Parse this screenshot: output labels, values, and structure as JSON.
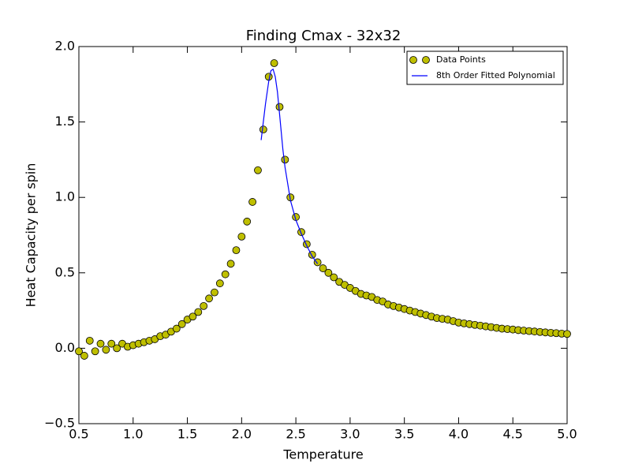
{
  "chart_data": {
    "type": "scatter",
    "title": "Finding Cmax - 32x32",
    "xlabel": "Temperature",
    "ylabel": "Heat Capacity per spin",
    "xlim": [
      0.5,
      5.0
    ],
    "xticks": [
      0.5,
      {
        "value": 1,
        "label": "1.0"
      },
      1.5,
      {
        "value": 2,
        "label": "2.0"
      },
      2.5,
      {
        "value": 3,
        "label": "3.0"
      },
      3.5,
      {
        "value": 4,
        "label": "4.0"
      },
      4.5,
      {
        "value": 5,
        "label": "5.0"
      }
    ],
    "ylim": [
      -0.5,
      2.0
    ],
    "yticks": [
      {
        "value": -0.5,
        "label": "−0.5"
      },
      {
        "value": 0,
        "label": "0.0"
      },
      0.5,
      {
        "value": 1,
        "label": "1.0"
      },
      1.5,
      {
        "value": 2,
        "label": "2.0"
      }
    ],
    "grid": false,
    "legend": "upper right",
    "series": [
      {
        "name": "Data Points",
        "type": "scatter",
        "color": "#bfbf00",
        "x": [
          0.5,
          0.55,
          0.6,
          0.65,
          0.7,
          0.75,
          0.8,
          0.85,
          0.9,
          0.95,
          1.0,
          1.05,
          1.1,
          1.15,
          1.2,
          1.25,
          1.3,
          1.35,
          1.4,
          1.45,
          1.5,
          1.55,
          1.6,
          1.65,
          1.7,
          1.75,
          1.8,
          1.85,
          1.9,
          1.95,
          2.0,
          2.05,
          2.1,
          2.15,
          2.2,
          2.25,
          2.3,
          2.35,
          2.4,
          2.45,
          2.5,
          2.55,
          2.6,
          2.65,
          2.7,
          2.75,
          2.8,
          2.85,
          2.9,
          2.95,
          3.0,
          3.05,
          3.1,
          3.15,
          3.2,
          3.25,
          3.3,
          3.35,
          3.4,
          3.45,
          3.5,
          3.55,
          3.6,
          3.65,
          3.7,
          3.75,
          3.8,
          3.85,
          3.9,
          3.95,
          4.0,
          4.05,
          4.1,
          4.15,
          4.2,
          4.25,
          4.3,
          4.35,
          4.4,
          4.45,
          4.5,
          4.55,
          4.6,
          4.65,
          4.7,
          4.75,
          4.8,
          4.85,
          4.9,
          4.95,
          5.0
        ],
        "values": [
          -0.02,
          -0.05,
          0.05,
          -0.02,
          0.03,
          -0.01,
          0.03,
          0.0,
          0.03,
          0.01,
          0.02,
          0.03,
          0.04,
          0.05,
          0.06,
          0.08,
          0.09,
          0.11,
          0.13,
          0.16,
          0.19,
          0.21,
          0.24,
          0.28,
          0.33,
          0.37,
          0.43,
          0.49,
          0.56,
          0.65,
          0.74,
          0.84,
          0.97,
          1.18,
          1.45,
          1.8,
          1.89,
          1.6,
          1.25,
          1.0,
          0.87,
          0.77,
          0.69,
          0.62,
          0.57,
          0.53,
          0.5,
          0.47,
          0.44,
          0.42,
          0.4,
          0.38,
          0.36,
          0.35,
          0.34,
          0.32,
          0.31,
          0.29,
          0.28,
          0.27,
          0.26,
          0.25,
          0.24,
          0.23,
          0.22,
          0.21,
          0.2,
          0.195,
          0.19,
          0.18,
          0.17,
          0.165,
          0.16,
          0.155,
          0.15,
          0.145,
          0.14,
          0.135,
          0.13,
          0.127,
          0.124,
          0.12,
          0.117,
          0.114,
          0.111,
          0.108,
          0.105,
          0.102,
          0.1,
          0.097,
          0.095
        ]
      },
      {
        "name": "8th Order Fitted Polynomial",
        "type": "line",
        "color": "#0000ff",
        "x": [
          2.18,
          2.2,
          2.22,
          2.25,
          2.27,
          2.29,
          2.31,
          2.33,
          2.35,
          2.38,
          2.4,
          2.45,
          2.5,
          2.55,
          2.6,
          2.65,
          2.7
        ],
        "values": [
          1.38,
          1.5,
          1.62,
          1.77,
          1.84,
          1.85,
          1.8,
          1.7,
          1.55,
          1.32,
          1.2,
          0.98,
          0.85,
          0.76,
          0.68,
          0.61,
          0.56
        ]
      }
    ]
  }
}
